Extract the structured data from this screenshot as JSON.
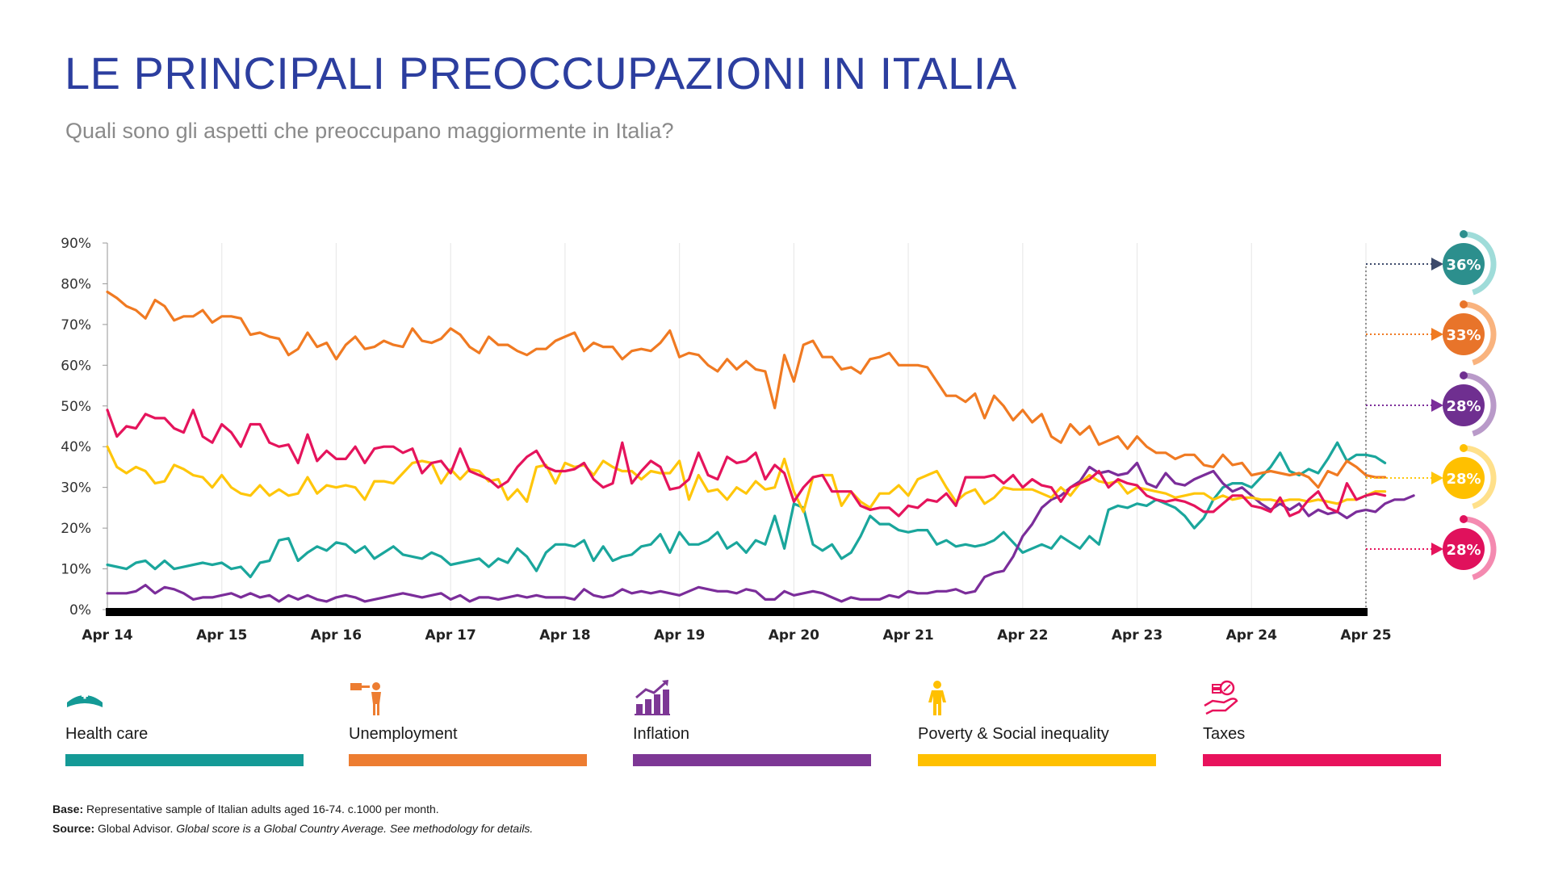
{
  "header": {
    "title": "LE PRINCIPALI PREOCCUPAZIONI IN ITALIA",
    "subtitle": "Quali sono gli aspetti che preoccupano maggiormente in Italia?"
  },
  "chart_data": {
    "type": "line",
    "title": "LE PRINCIPALI PREOCCUPAZIONI IN ITALIA",
    "xlabel": "",
    "ylabel": "",
    "ylim": [
      0,
      90
    ],
    "y_ticks": [
      "0%",
      "10%",
      "20%",
      "30%",
      "40%",
      "50%",
      "60%",
      "70%",
      "80%",
      "90%"
    ],
    "x_ticks": [
      "Apr 14",
      "Apr 15",
      "Apr 16",
      "Apr 17",
      "Apr 18",
      "Apr 19",
      "Apr 20",
      "Apr 21",
      "Apr 22",
      "Apr 23",
      "Apr 24",
      "Apr 25"
    ],
    "months_per_tick": 12,
    "series": [
      {
        "name": "Health care",
        "color": "#1aa69c",
        "final_label": "36%",
        "values": [
          11,
          10.5,
          10,
          11.5,
          12,
          10,
          12,
          10,
          10.5,
          11,
          11.5,
          11,
          11.5,
          10,
          10.5,
          8,
          11.5,
          12,
          17,
          17.5,
          12,
          14,
          15.5,
          14.5,
          16.5,
          16,
          14,
          15.5,
          12.5,
          14,
          15.5,
          13.5,
          13,
          12.5,
          14,
          13,
          11,
          11.5,
          12,
          12.5,
          10.5,
          12.5,
          11.5,
          15,
          13,
          9.5,
          14,
          16,
          16,
          15.5,
          17,
          12,
          15.5,
          12,
          13,
          13.5,
          15.5,
          16,
          18.5,
          14,
          19,
          16,
          16,
          17,
          19,
          15,
          16.5,
          14,
          17,
          16,
          23,
          15,
          26,
          25,
          16,
          14.5,
          16,
          12.5,
          14,
          18,
          23,
          21,
          21,
          19.5,
          19,
          19.5,
          19.5,
          16,
          17,
          15.5,
          16,
          15.5,
          16,
          17,
          19,
          16.5,
          14,
          15,
          16,
          15,
          18,
          16.5,
          15,
          18,
          16,
          24.5,
          25.5,
          25,
          26,
          25.5,
          27,
          26,
          25,
          23,
          20,
          22.5,
          27,
          30,
          31,
          31,
          30,
          32.5,
          35,
          38.5,
          34,
          33,
          34.5,
          33.5,
          37,
          41,
          36.5,
          38,
          38,
          37.5,
          36
        ]
      },
      {
        "name": "Unemployment",
        "color": "#f07a22",
        "final_label": "33%",
        "values": [
          78,
          76.5,
          74.5,
          73.5,
          71.5,
          76,
          74.5,
          71,
          72,
          72,
          73.5,
          70.5,
          72,
          72,
          71.5,
          67.5,
          68,
          67,
          66.5,
          62.5,
          64,
          68,
          64.5,
          65.5,
          61.5,
          65,
          67,
          64,
          64.5,
          66,
          65,
          64.5,
          69,
          66,
          65.5,
          66.5,
          69,
          67.5,
          64.5,
          63,
          67,
          65,
          65,
          63.5,
          62.5,
          64,
          64,
          66,
          67,
          68,
          63.5,
          65.5,
          64.5,
          64.5,
          61.5,
          63.5,
          64,
          63.5,
          65.5,
          68.5,
          62,
          63,
          62.5,
          60,
          58.5,
          61.5,
          59,
          61,
          59,
          58.5,
          49.5,
          62.5,
          56,
          65,
          66,
          62,
          62,
          59,
          59.5,
          58,
          61.5,
          62,
          63,
          60,
          60,
          60,
          59.5,
          56,
          52.5,
          52.5,
          51,
          53,
          47,
          52.5,
          50,
          46.5,
          49,
          46,
          48,
          42.5,
          41,
          45.5,
          43,
          45,
          40.5,
          41.5,
          42.5,
          39.5,
          42.5,
          40,
          38.5,
          38.5,
          37,
          38,
          38,
          35.5,
          35,
          38,
          35.5,
          36,
          33,
          33.5,
          34,
          33.5,
          33,
          33.5,
          32.5,
          30,
          34,
          33,
          36.5,
          35,
          33,
          32.5,
          32.5
        ]
      },
      {
        "name": "Inflation",
        "color": "#7b2d9a",
        "final_label": "28%",
        "values": [
          4,
          4,
          4,
          4.5,
          6,
          4,
          5.5,
          5,
          4,
          2.5,
          3,
          3,
          3.5,
          4,
          3,
          4,
          3,
          3.5,
          2,
          3.5,
          2.5,
          3.5,
          2.5,
          2,
          3,
          3.5,
          3,
          2,
          2.5,
          3,
          3.5,
          4,
          3.5,
          3,
          3.5,
          4,
          2.5,
          3.5,
          2,
          3,
          3,
          2.5,
          3,
          3.5,
          3,
          3.5,
          3,
          3,
          3,
          2.5,
          5,
          3.5,
          3,
          3.5,
          5,
          4,
          4.5,
          4,
          4.5,
          4,
          3.5,
          4.5,
          5.5,
          5,
          4.5,
          4.5,
          4,
          5,
          4.5,
          2.5,
          2.5,
          4.5,
          3.5,
          4,
          4.5,
          4,
          3,
          2,
          3,
          2.5,
          2.5,
          2.5,
          3.5,
          3,
          4.5,
          4,
          4,
          4.5,
          4.5,
          5,
          4,
          4.5,
          8,
          9,
          9.5,
          13,
          18,
          21,
          25,
          27,
          28,
          30,
          31.5,
          35,
          33.5,
          34,
          33,
          33.5,
          36,
          31,
          30,
          33.5,
          31,
          30.5,
          32,
          33,
          34,
          31,
          29,
          30,
          28,
          26,
          24.5,
          26,
          24.5,
          26,
          23,
          24.5,
          23.5,
          24,
          22.5,
          24,
          24.5,
          24,
          26,
          27,
          27,
          28
        ]
      },
      {
        "name": "Poverty & Social inequality",
        "color": "#ffc60a",
        "final_label": "28%",
        "values": [
          40,
          35,
          33.5,
          35,
          34,
          31,
          31.5,
          35.5,
          34.5,
          33,
          32.5,
          30,
          33,
          30,
          28.5,
          28,
          30.5,
          28,
          29.5,
          28,
          28.5,
          32.5,
          28.5,
          30.5,
          30,
          30.5,
          30,
          27,
          31.5,
          31.5,
          31,
          33.5,
          36,
          36.5,
          36,
          31,
          34.5,
          32,
          34.5,
          34,
          31.5,
          32,
          27,
          29.5,
          26.5,
          35,
          35.5,
          31,
          36,
          35,
          35.5,
          33,
          36.5,
          35,
          34,
          34,
          32,
          34,
          33.5,
          33.5,
          36.5,
          27,
          33,
          29,
          29.5,
          27,
          30,
          28.5,
          31.5,
          29.5,
          30,
          37,
          29,
          24,
          32.5,
          33,
          33,
          25.5,
          29,
          26.5,
          25,
          28.5,
          28.5,
          30.5,
          28,
          32,
          33,
          34,
          30,
          26.5,
          28.5,
          29.5,
          26,
          27.5,
          30,
          29.5,
          29.5,
          29.5,
          28.5,
          27.5,
          30,
          28,
          31,
          33,
          31.5,
          31,
          31.5,
          28.5,
          30,
          29.5,
          29,
          28.5,
          27.5,
          28,
          28.5,
          28.5,
          27,
          28,
          27,
          27.5,
          27.5,
          27,
          27,
          26.5,
          27,
          27,
          26.5,
          27,
          26.5,
          26,
          27,
          27,
          28,
          29,
          29
        ]
      },
      {
        "name": "Taxes",
        "color": "#e5145c",
        "final_label": "28%",
        "values": [
          49,
          42.5,
          45,
          44.5,
          48,
          47,
          47,
          44.5,
          43.5,
          49,
          42.5,
          41,
          45.5,
          43.5,
          40,
          45.5,
          45.5,
          41,
          40,
          40.5,
          36,
          43,
          36.5,
          39,
          37,
          37,
          40,
          36,
          39.5,
          40,
          40,
          38.5,
          39.5,
          33.5,
          36,
          36.5,
          33.5,
          39.5,
          34,
          33,
          32,
          30,
          31.5,
          35,
          37.5,
          39,
          35,
          34,
          34,
          34.5,
          36,
          32,
          30,
          31,
          41,
          31,
          34,
          36.5,
          35,
          29.5,
          30,
          32,
          38.5,
          33,
          32,
          37.5,
          36,
          36.5,
          38.5,
          32,
          35.5,
          33.5,
          26.5,
          30,
          32.5,
          33,
          29,
          29,
          29,
          25.5,
          24.5,
          25,
          25,
          23,
          25.5,
          25,
          27,
          26.5,
          28.5,
          25.5,
          32.5,
          32.5,
          32.5,
          33,
          31,
          33,
          30,
          32,
          30.5,
          30,
          26.5,
          30,
          31,
          32,
          34,
          30,
          32,
          31,
          30.5,
          28,
          27,
          26.5,
          27,
          26.5,
          25.5,
          24,
          24,
          26,
          28,
          28,
          25.5,
          25,
          24,
          27.5,
          23,
          24,
          27,
          29,
          25,
          24,
          31,
          27,
          28,
          28.5,
          28
        ]
      }
    ]
  },
  "legend": [
    {
      "label": "Health care",
      "icon": "nurse-cap-icon",
      "color": "#149a96"
    },
    {
      "label": "Unemployment",
      "icon": "worker-pointing-icon",
      "color": "#ed7d31"
    },
    {
      "label": "Inflation",
      "icon": "rising-bars-icon",
      "color": "#7d3795"
    },
    {
      "label": "Poverty & Social inequality",
      "icon": "person-standing-icon",
      "color": "#ffc000"
    },
    {
      "label": "Taxes",
      "icon": "hand-money-icon",
      "color": "#e8125c"
    }
  ],
  "footnotes": {
    "base_label": "Base:",
    "base_text": " Representative sample of Italian adults aged 16-74. c.1000 per month.",
    "source_label": "Source:",
    "source_text": " Global Advisor. ",
    "source_italic": "Global score is a Global Country Average. See methodology for details."
  }
}
